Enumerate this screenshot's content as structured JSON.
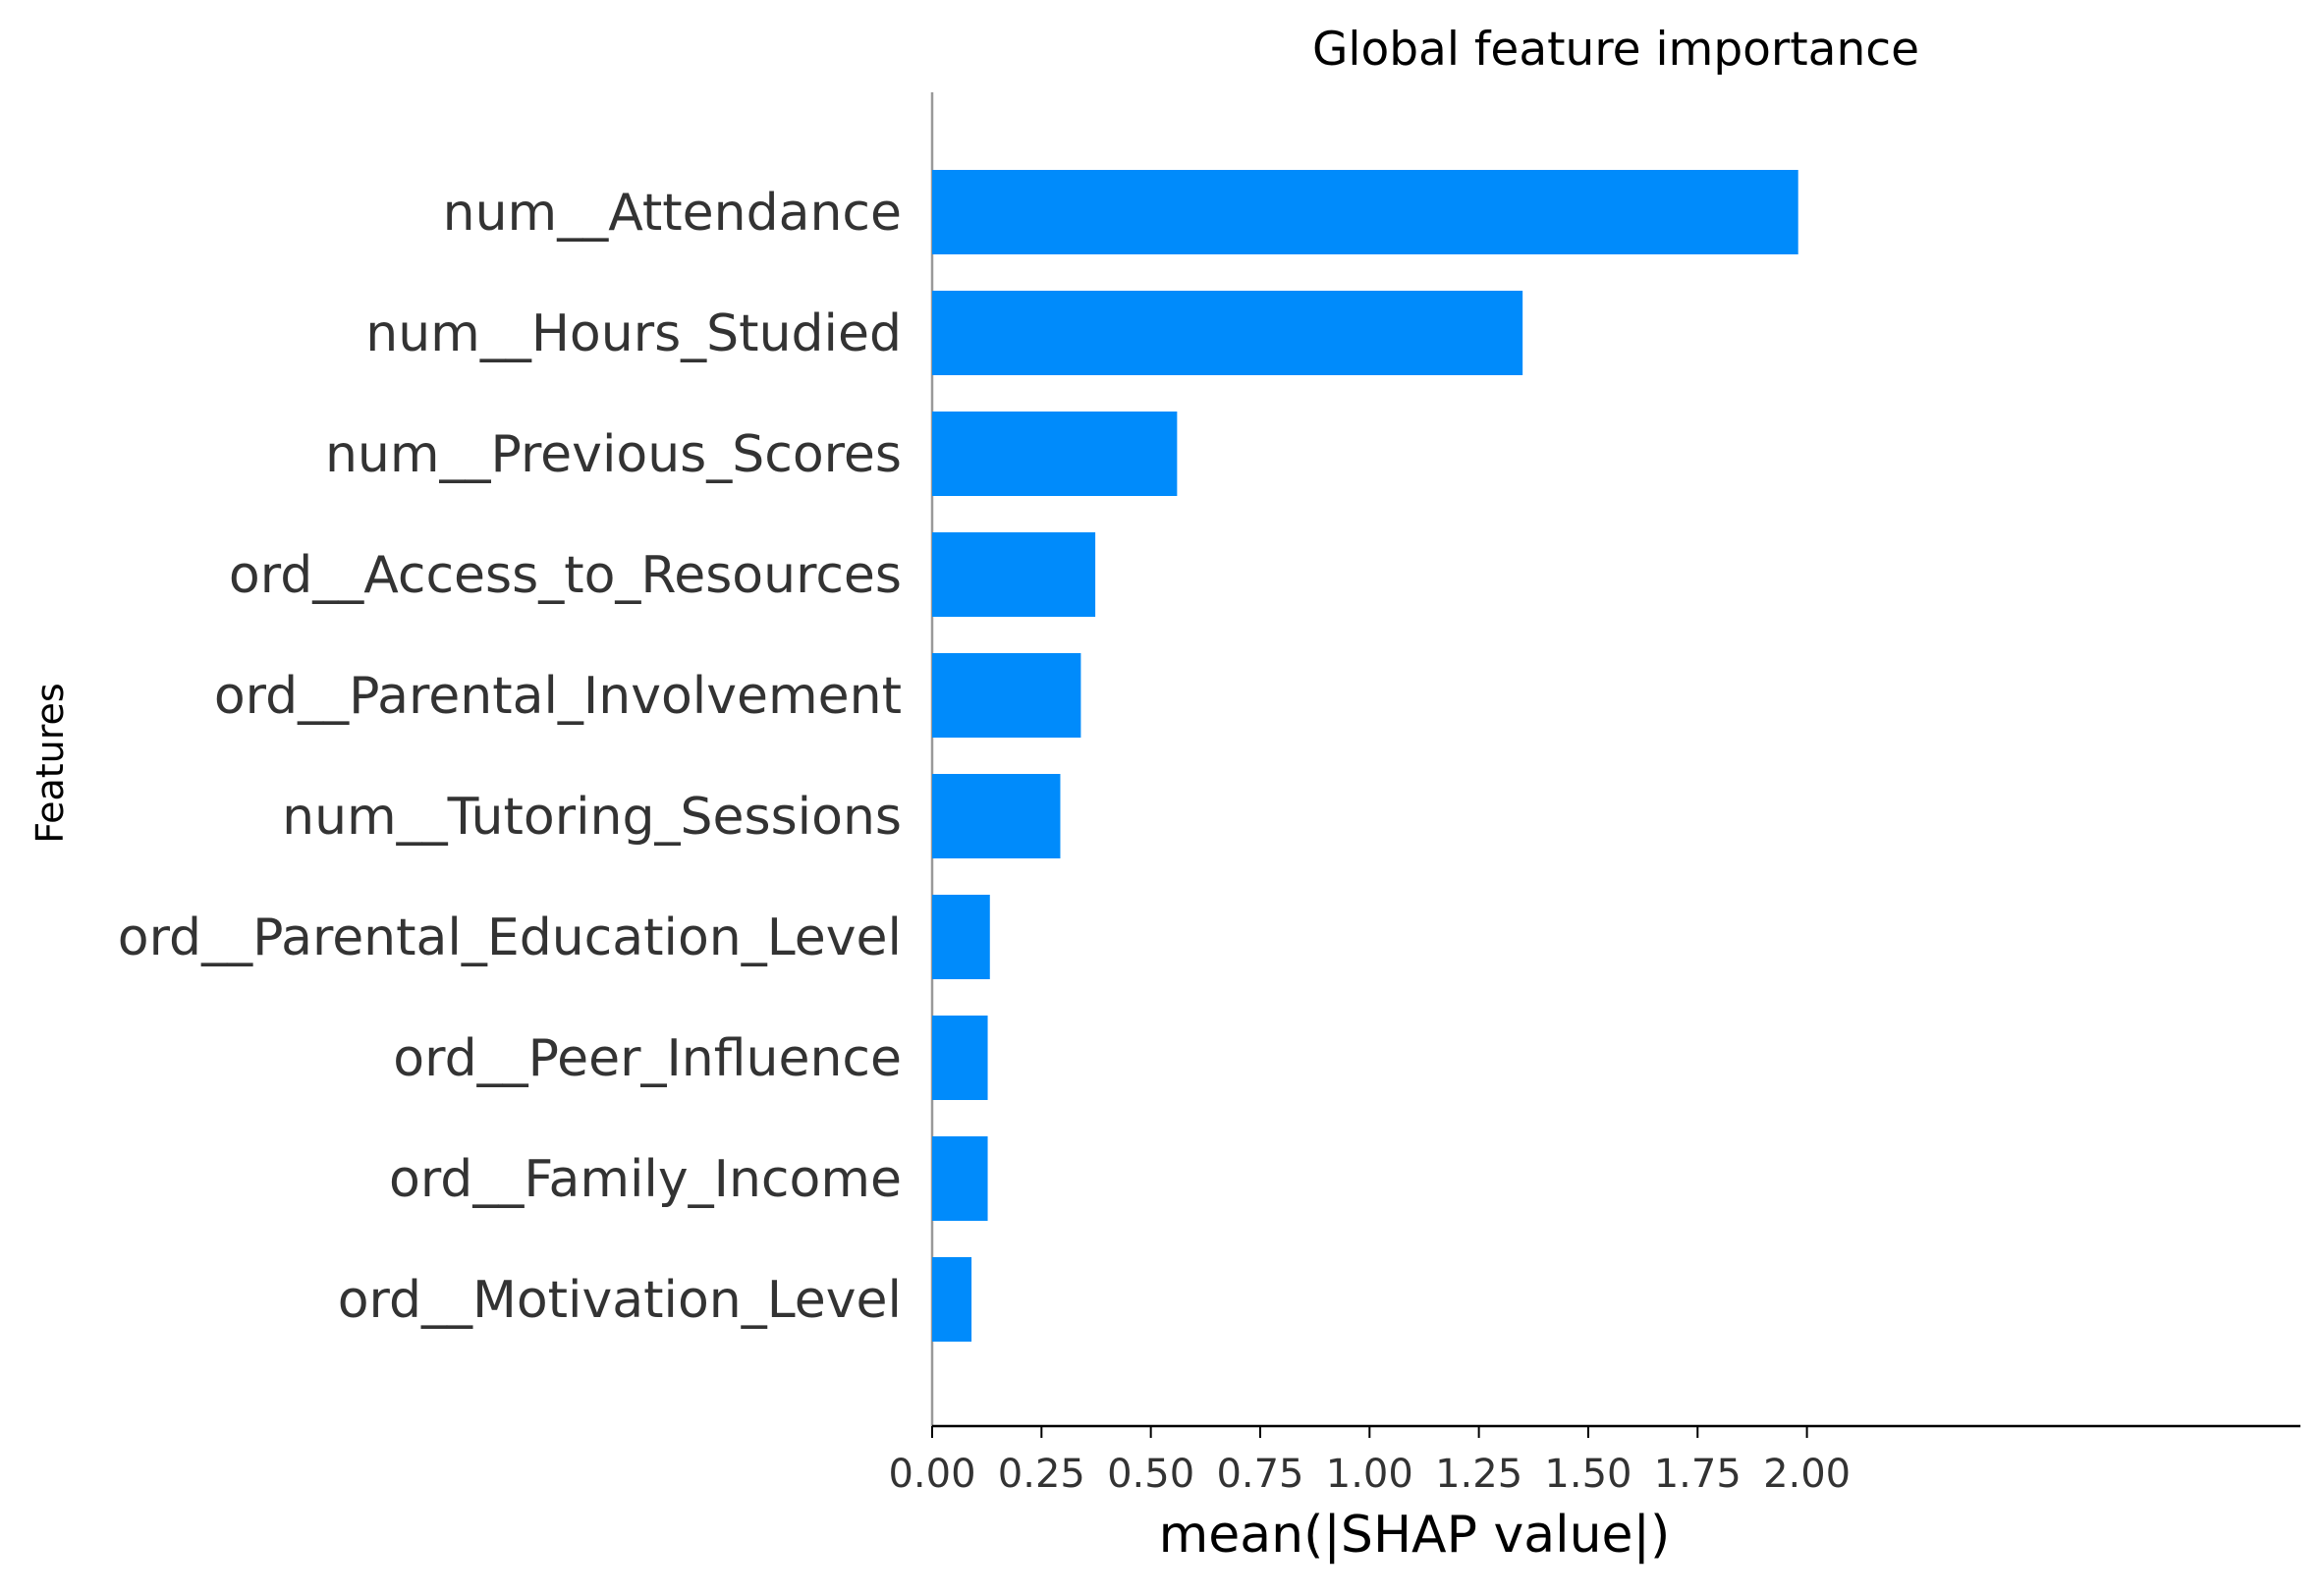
{
  "chart_data": {
    "type": "bar",
    "orientation": "horizontal",
    "title": "Global feature importance",
    "xlabel": "mean(|SHAP value|)",
    "ylabel": "Features",
    "categories": [
      "num__Attendance",
      "num__Hours_Studied",
      "num__Previous_Scores",
      "ord__Access_to_Resources",
      "ord__Parental_Involvement",
      "num__Tutoring_Sessions",
      "ord__Parental_Education_Level",
      "ord__Peer_Influence",
      "ord__Family_Income",
      "ord__Motivation_Level"
    ],
    "values": [
      1.98,
      1.35,
      0.56,
      0.373,
      0.34,
      0.293,
      0.132,
      0.127,
      0.127,
      0.09
    ],
    "xlim": [
      0,
      2.08
    ],
    "xticks": [
      "0.00",
      "0.25",
      "0.50",
      "0.75",
      "1.00",
      "1.25",
      "1.50",
      "1.75",
      "2.00"
    ],
    "bar_color": "#008bfb",
    "axis_color": "#999999",
    "grid": false,
    "legend": "none"
  }
}
